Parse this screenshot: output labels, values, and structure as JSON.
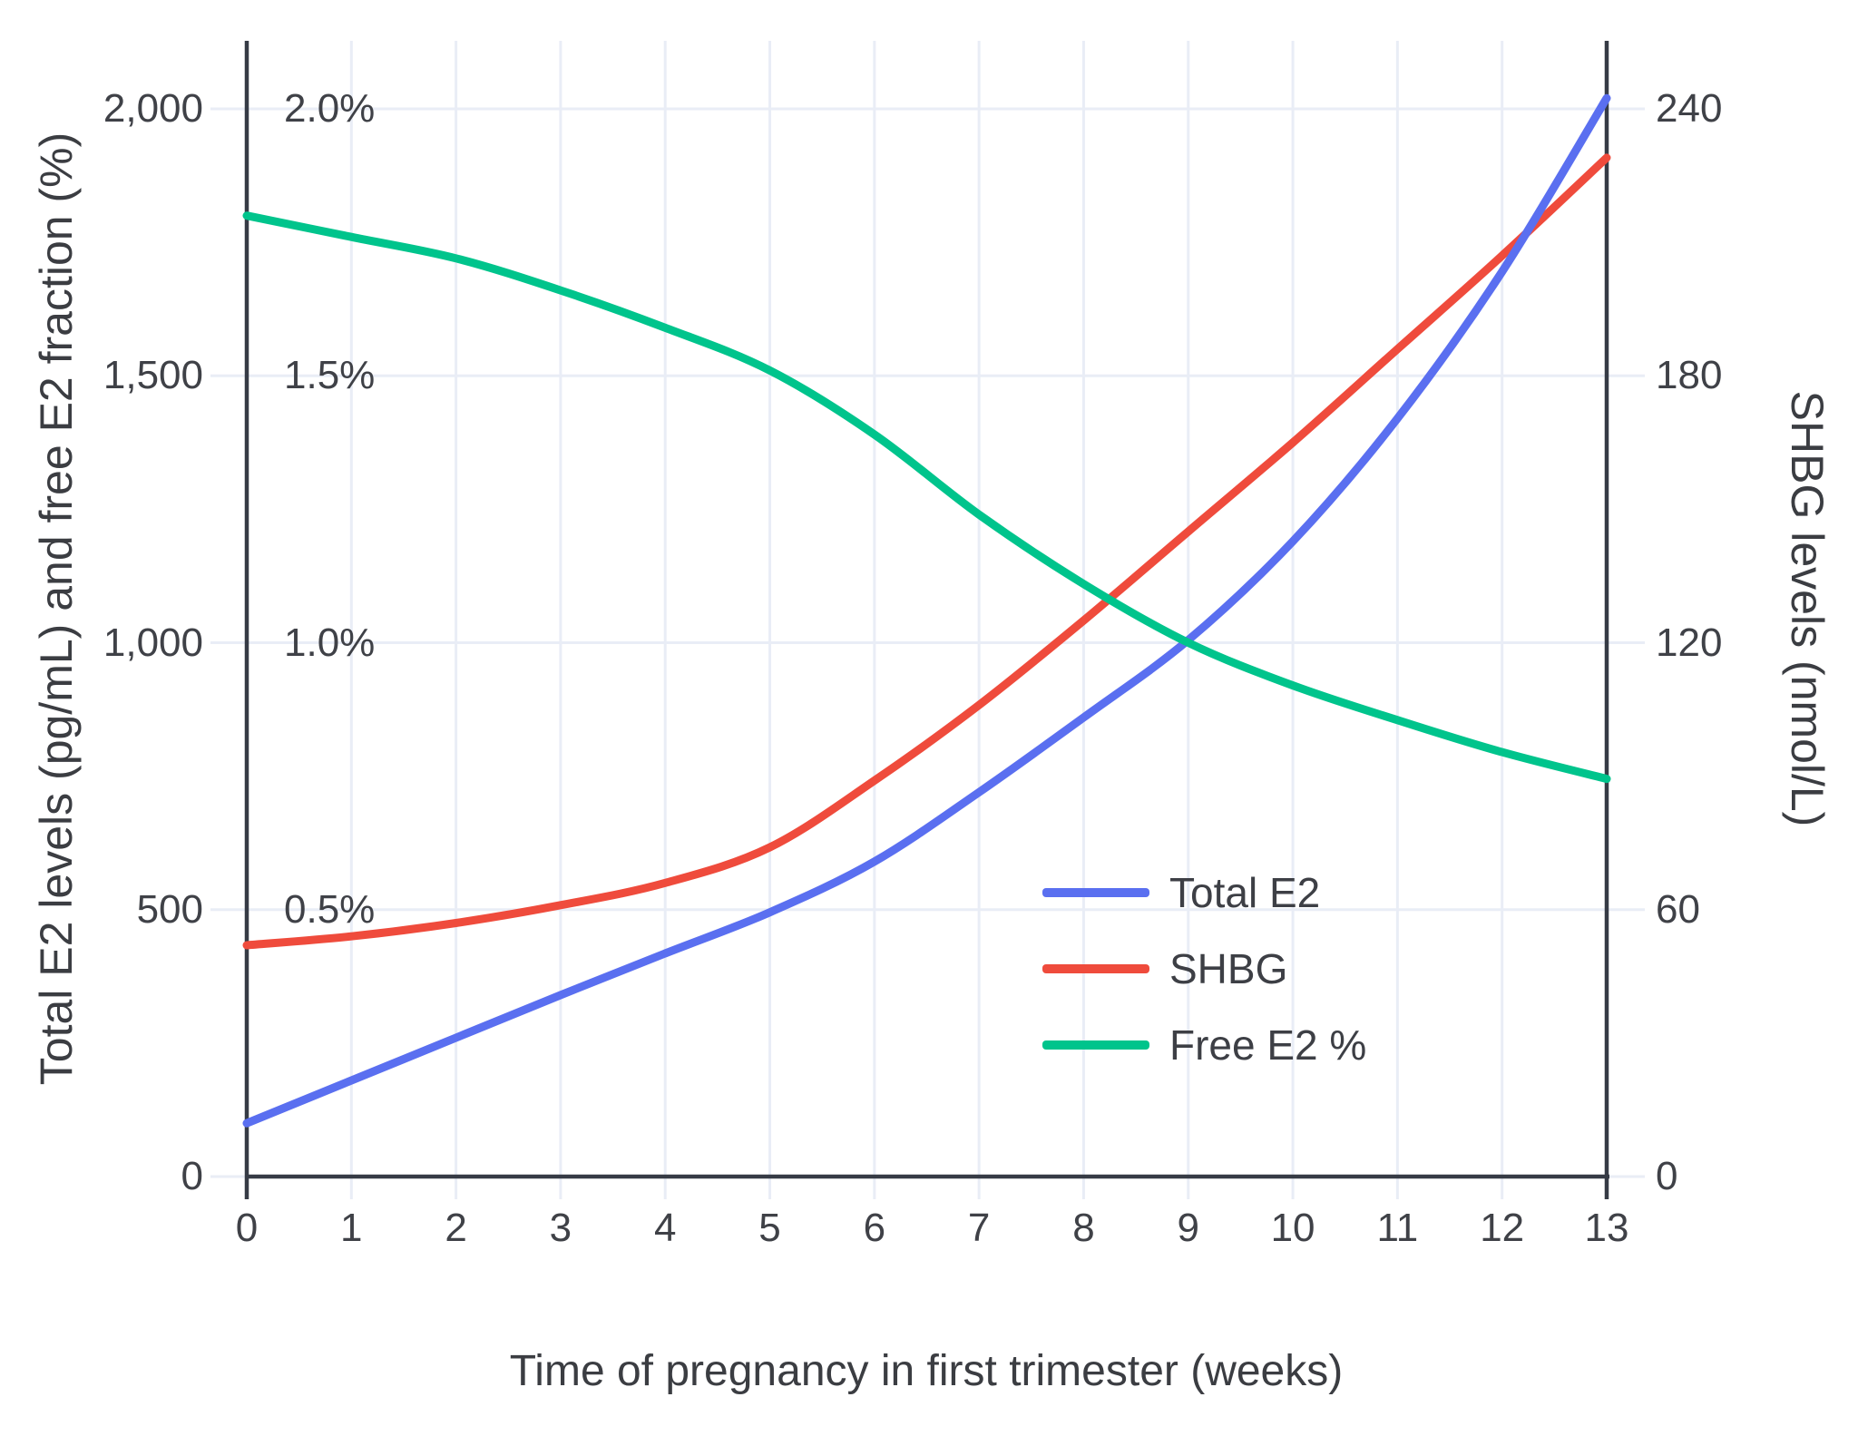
{
  "chart_data": {
    "type": "line",
    "title": "",
    "xlabel": "Time of pregnancy in first trimester (weeks)",
    "ylabel_left": "Total E2 levels (pg/mL) and free E2 fraction (%)",
    "ylabel_right": "SHBG levels (nmol/L)",
    "x_weeks": [
      0,
      1,
      2,
      3,
      4,
      5,
      6,
      7,
      8,
      9,
      10,
      11,
      12,
      13
    ],
    "x_tick_labels": [
      "0",
      "1",
      "2",
      "3",
      "4",
      "5",
      "6",
      "7",
      "8",
      "9",
      "10",
      "11",
      "12",
      "13"
    ],
    "left_axis": {
      "range": [
        0,
        2000
      ],
      "ticks": [
        {
          "value": 0,
          "label": "0"
        },
        {
          "value": 500,
          "label": "500"
        },
        {
          "value": 1000,
          "label": "1,000"
        },
        {
          "value": 1500,
          "label": "1,500"
        },
        {
          "value": 2000,
          "label": "2,000"
        }
      ]
    },
    "percent_axis": {
      "labels": [
        {
          "value": 500,
          "label": "0.5%"
        },
        {
          "value": 1000,
          "label": "1.0%"
        },
        {
          "value": 1500,
          "label": "1.5%"
        },
        {
          "value": 2000,
          "label": "2.0%"
        }
      ]
    },
    "right_axis": {
      "range": [
        0,
        240
      ],
      "ticks": [
        {
          "value": 0,
          "label": "0"
        },
        {
          "value": 60,
          "label": "60"
        },
        {
          "value": 120,
          "label": "120"
        },
        {
          "value": 180,
          "label": "180"
        },
        {
          "value": 240,
          "label": "240"
        }
      ]
    },
    "series": [
      {
        "name": "Total E2",
        "axis": "left",
        "unit": "pg/mL",
        "color": "#5A6FF0",
        "values": [
          100,
          180,
          260,
          340,
          418,
          495,
          590,
          720,
          860,
          1005,
          1190,
          1420,
          1695,
          2020
        ]
      },
      {
        "name": "SHBG",
        "axis": "right",
        "unit": "nmol/L",
        "color": "#EF4B3C",
        "values": [
          52,
          54,
          57,
          61,
          66,
          74,
          89,
          106,
          125,
          145,
          165,
          186,
          207,
          229
        ]
      },
      {
        "name": "Free E2 %",
        "axis": "percent",
        "unit": "%",
        "color": "#00C48C",
        "values": [
          1.8,
          1.76,
          1.72,
          1.66,
          1.59,
          1.51,
          1.39,
          1.24,
          1.11,
          1.0,
          0.92,
          0.855,
          0.795,
          0.745
        ]
      }
    ],
    "legend": {
      "position": "inside-right",
      "items": [
        "Total E2",
        "SHBG",
        "Free E2 %"
      ]
    },
    "grid": true,
    "colors": {
      "grid": "#E9EDF6",
      "axis": "#363B45",
      "text": "#3F4147",
      "background": "#FFFFFF"
    }
  }
}
